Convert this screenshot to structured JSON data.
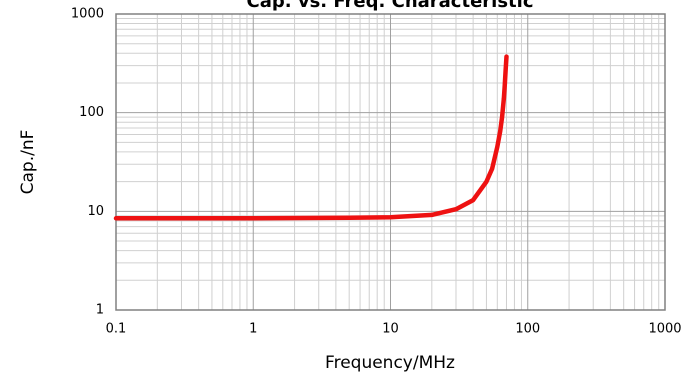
{
  "chart_data": {
    "type": "line",
    "title": "Cap. vs. Freq. Characteristic",
    "xlabel": "Frequency/MHz",
    "ylabel": "Cap./nF",
    "x": [
      0.1,
      1,
      5,
      10,
      20,
      30,
      40,
      50,
      55,
      60,
      63,
      65,
      67,
      68,
      69,
      70
    ],
    "values": [
      8.5,
      8.5,
      8.6,
      8.7,
      9.2,
      10.5,
      13,
      20,
      27,
      45,
      65,
      90,
      140,
      190,
      270,
      370
    ],
    "color": "#ee1111",
    "xlim": [
      0.1,
      1000
    ],
    "xticks": [
      0.1,
      1,
      10,
      100,
      1000
    ],
    "xlog": true,
    "ylim": [
      1,
      1000
    ],
    "yticks": [
      1,
      10,
      100,
      1000
    ],
    "ylog": true,
    "grid": true
  }
}
